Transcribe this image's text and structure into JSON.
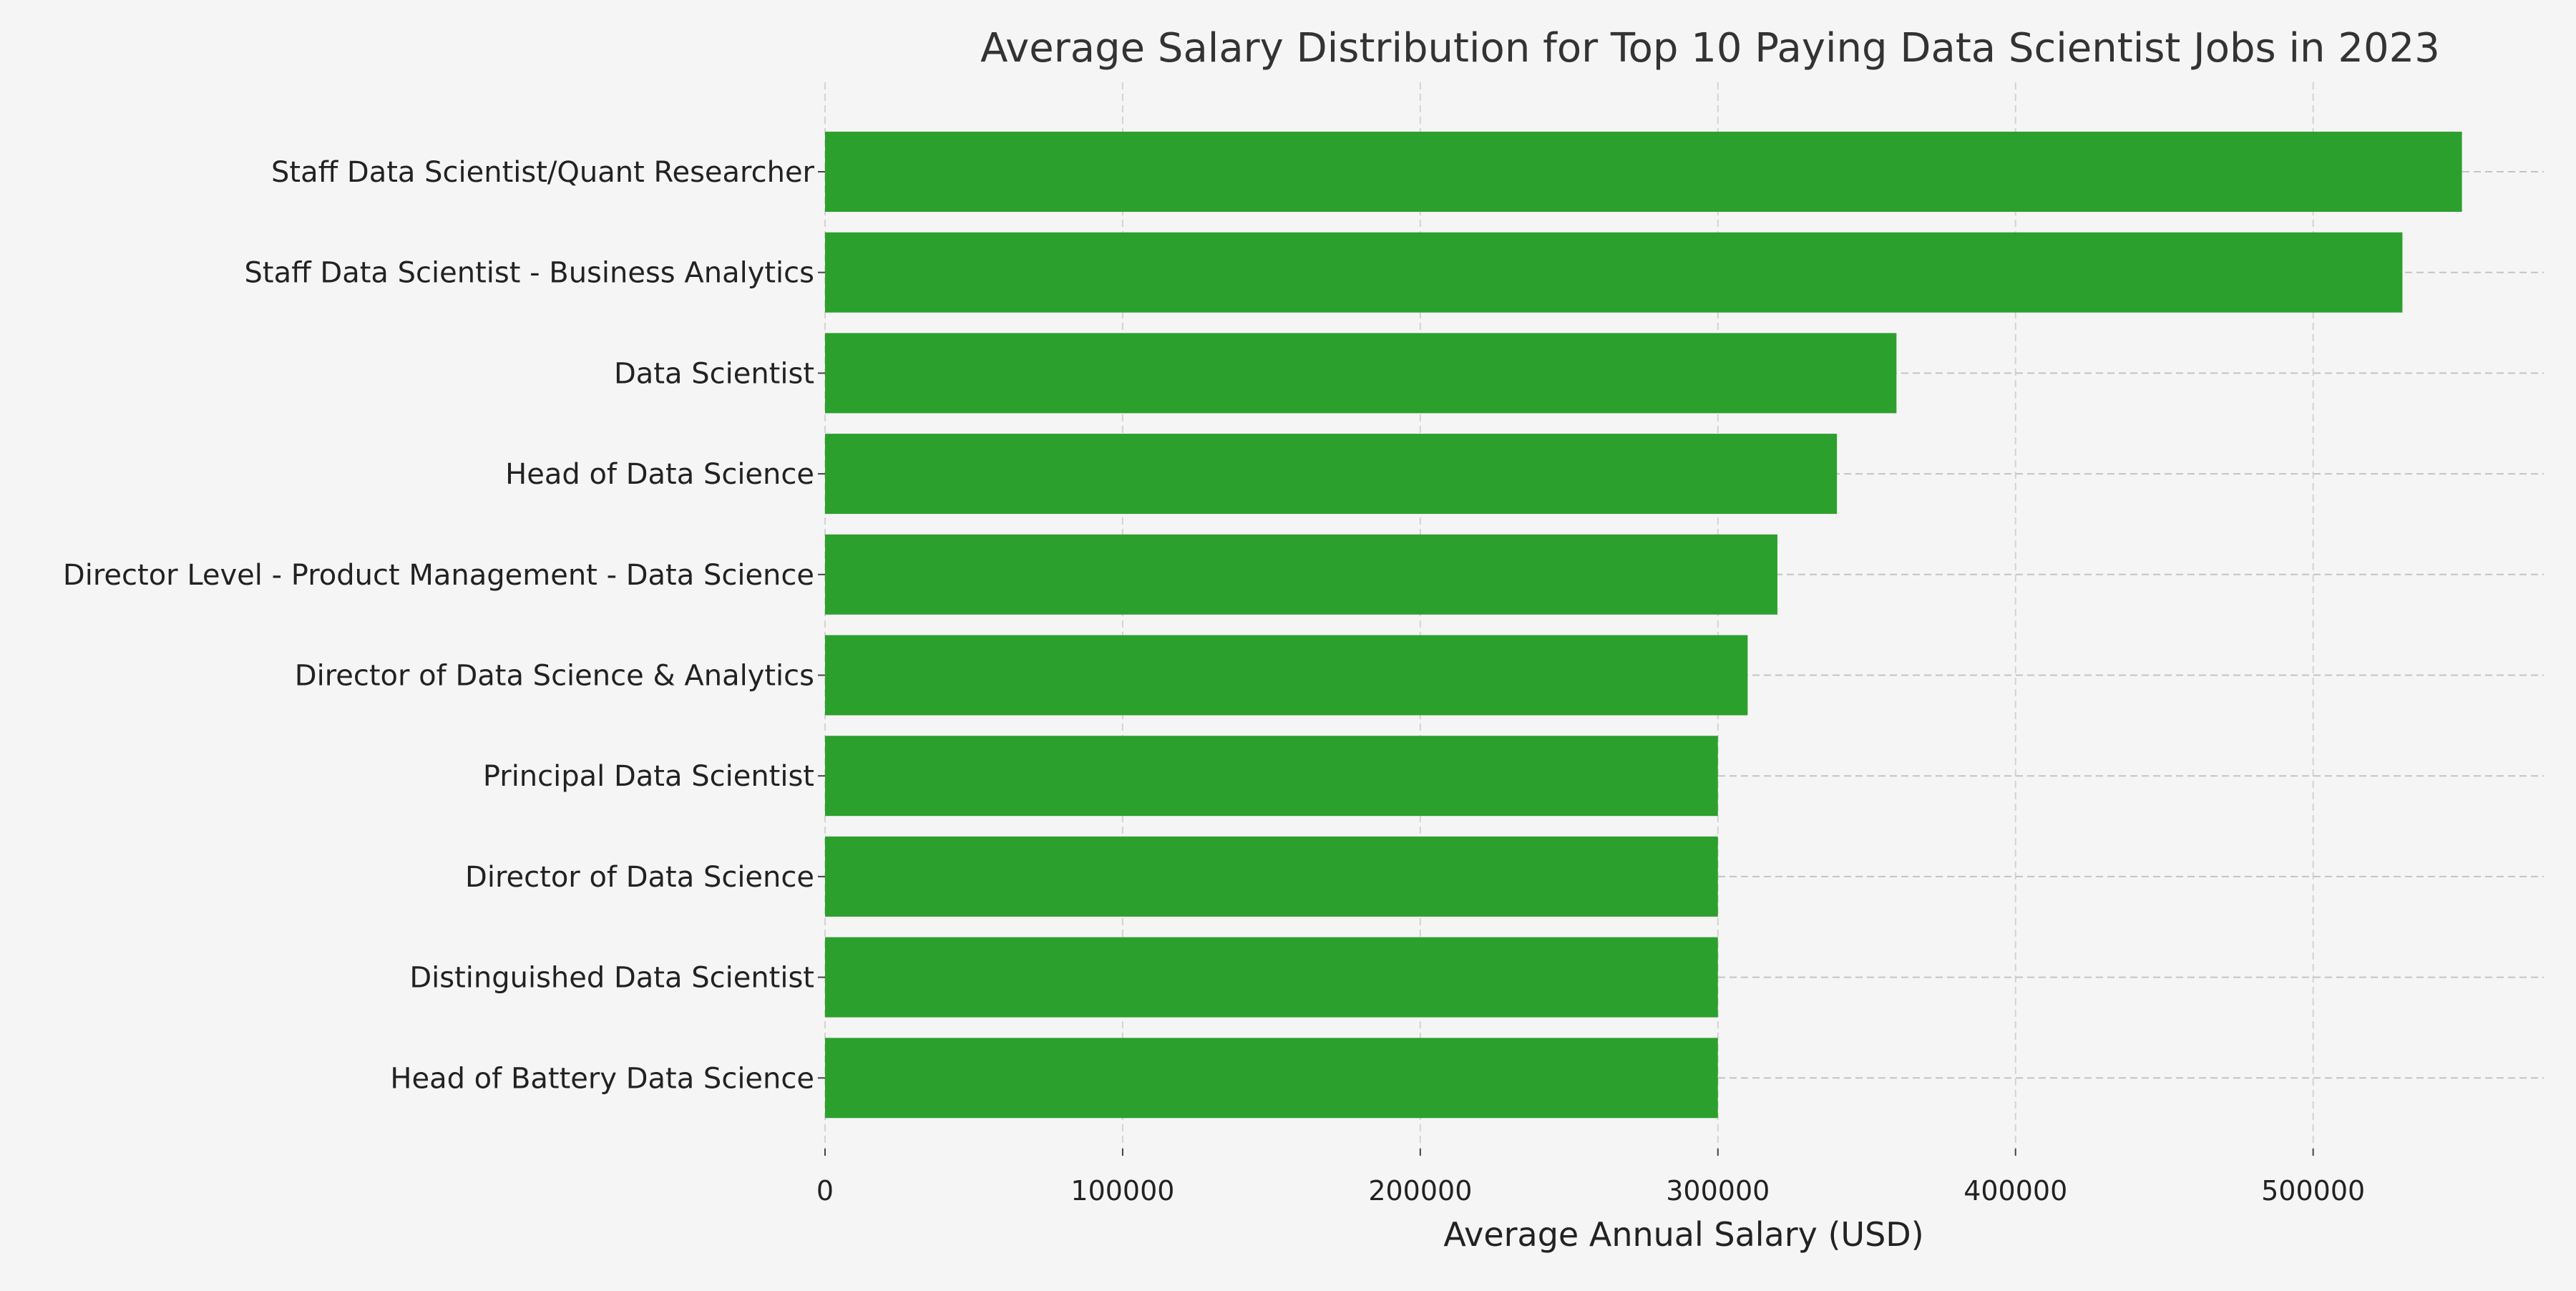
{
  "chart_data": {
    "type": "bar",
    "orientation": "horizontal",
    "title": "Average Salary Distribution for Top 10 Paying Data Scientist Jobs in 2023",
    "xlabel": "Average Annual Salary (USD)",
    "ylabel": "",
    "categories": [
      "Staff Data Scientist/Quant Researcher",
      "Staff Data Scientist - Business Analytics",
      "Data Scientist",
      "Head of Data Science",
      "Director Level - Product Management - Data Science",
      "Director of Data Science & Analytics",
      "Principal Data Scientist",
      "Director of Data Science",
      "Distinguished Data Scientist",
      "Head of Battery Data Science"
    ],
    "values": [
      550000,
      530000,
      360000,
      340000,
      320000,
      310000,
      300000,
      300000,
      300000,
      300000
    ],
    "xlim": [
      0,
      577500
    ],
    "xticks": [
      0,
      100000,
      200000,
      300000,
      400000,
      500000
    ],
    "xtick_labels": [
      "0",
      "100000",
      "200000",
      "300000",
      "400000",
      "500000"
    ],
    "grid": true,
    "bar_color": "#2ca02c",
    "background_color": "#f5f5f5"
  }
}
